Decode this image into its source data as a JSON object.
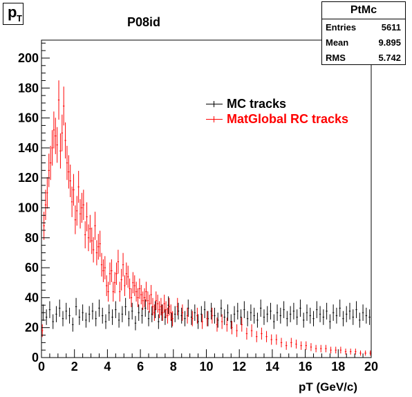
{
  "title_box": {
    "main": "p",
    "sub": "T"
  },
  "subtitle": "P08id",
  "stats": {
    "name": "PtMc",
    "rows": [
      {
        "label": "Entries",
        "value": "5611"
      },
      {
        "label": "Mean",
        "value": "9.895"
      },
      {
        "label": "RMS",
        "value": "5.742"
      }
    ]
  },
  "legend": [
    {
      "label": "MC tracks",
      "color": "#000000"
    },
    {
      "label": "MatGlobal RC tracks",
      "color": "#ff0000"
    }
  ],
  "chart_data": {
    "type": "scatter",
    "title": "P08id",
    "xlabel": "pT (GeV/c)",
    "ylabel": "",
    "xlim": [
      0,
      20
    ],
    "ylim": [
      0,
      212
    ],
    "x_ticks": [
      0,
      2,
      4,
      6,
      8,
      10,
      12,
      14,
      16,
      18,
      20
    ],
    "y_ticks": [
      0,
      20,
      40,
      60,
      80,
      100,
      120,
      140,
      160,
      180,
      200
    ],
    "bin_width": 0.1,
    "series": [
      {
        "name": "MC tracks",
        "color": "#000000",
        "x": [
          0.1,
          0.3,
          0.5,
          0.7,
          0.9,
          1.1,
          1.3,
          1.5,
          1.7,
          1.9,
          2.1,
          2.3,
          2.5,
          2.7,
          2.9,
          3.1,
          3.3,
          3.5,
          3.7,
          3.9,
          4.1,
          4.3,
          4.5,
          4.7,
          4.9,
          5.1,
          5.3,
          5.5,
          5.7,
          5.9,
          6.1,
          6.3,
          6.5,
          6.7,
          6.9,
          7.1,
          7.3,
          7.5,
          7.7,
          7.9,
          8.1,
          8.3,
          8.5,
          8.7,
          8.9,
          9.1,
          9.3,
          9.5,
          9.7,
          9.9,
          10.1,
          10.3,
          10.5,
          10.7,
          10.9,
          11.1,
          11.3,
          11.5,
          11.7,
          11.9,
          12.1,
          12.3,
          12.5,
          12.7,
          12.9,
          13.1,
          13.3,
          13.5,
          13.7,
          13.9,
          14.1,
          14.3,
          14.5,
          14.7,
          14.9,
          15.1,
          15.3,
          15.5,
          15.7,
          15.9,
          16.1,
          16.3,
          16.5,
          16.7,
          16.9,
          17.1,
          17.3,
          17.5,
          17.7,
          17.9,
          18.1,
          18.3,
          18.5,
          18.7,
          18.9,
          19.1,
          19.3,
          19.5,
          19.7,
          19.9
        ],
        "values": [
          30,
          27,
          32,
          24,
          29,
          33,
          26,
          31,
          28,
          22,
          34,
          27,
          30,
          25,
          29,
          31,
          26,
          33,
          28,
          24,
          30,
          27,
          32,
          25,
          29,
          34,
          26,
          31,
          23,
          30,
          28,
          33,
          26,
          29,
          32,
          24,
          30,
          27,
          35,
          25,
          29,
          31,
          28,
          26,
          33,
          27,
          30,
          24,
          29,
          32,
          26,
          31,
          28,
          25,
          33,
          27,
          30,
          24,
          29,
          31,
          27,
          32,
          26,
          30,
          28,
          25,
          33,
          27,
          29,
          31,
          24,
          30,
          28,
          32,
          26,
          29,
          31,
          27,
          33,
          25,
          30,
          28,
          26,
          32,
          29,
          27,
          31,
          24,
          30,
          28,
          33,
          26,
          29,
          31,
          27,
          32,
          25,
          30,
          28,
          27
        ]
      },
      {
        "name": "MatGlobal RC tracks",
        "color": "#ff0000",
        "x": [
          0.05,
          0.15,
          0.25,
          0.35,
          0.45,
          0.55,
          0.65,
          0.75,
          0.85,
          0.95,
          1.05,
          1.15,
          1.25,
          1.35,
          1.45,
          1.55,
          1.65,
          1.75,
          1.85,
          1.95,
          2.05,
          2.15,
          2.25,
          2.35,
          2.45,
          2.55,
          2.65,
          2.75,
          2.85,
          2.95,
          3.05,
          3.15,
          3.25,
          3.35,
          3.45,
          3.55,
          3.65,
          3.75,
          3.85,
          3.95,
          4.05,
          4.15,
          4.25,
          4.35,
          4.45,
          4.55,
          4.65,
          4.75,
          4.85,
          4.95,
          5.05,
          5.15,
          5.25,
          5.35,
          5.45,
          5.55,
          5.65,
          5.75,
          5.85,
          5.95,
          6.05,
          6.15,
          6.25,
          6.35,
          6.45,
          6.55,
          6.65,
          6.75,
          6.85,
          6.95,
          7.05,
          7.15,
          7.25,
          7.35,
          7.45,
          7.55,
          7.65,
          7.75,
          7.85,
          7.95,
          8.25,
          8.55,
          8.85,
          9.15,
          9.45,
          9.75,
          10.05,
          10.35,
          10.65,
          10.95,
          11.25,
          11.55,
          11.85,
          12.15,
          12.45,
          12.75,
          13.05,
          13.35,
          13.65,
          13.95,
          14.25,
          14.55,
          14.85,
          15.15,
          15.45,
          15.75,
          16.05,
          16.35,
          16.65,
          16.95,
          17.25,
          17.55,
          17.85,
          18.15,
          18.45,
          18.75,
          19.05,
          19.35,
          19.65,
          19.95
        ],
        "values": [
          18,
          88,
          102,
          110,
          125,
          130,
          140,
          152,
          148,
          142,
          172,
          138,
          150,
          168,
          145,
          130,
          124,
          118,
          104,
          112,
          92,
          98,
          114,
          96,
          100,
          102,
          82,
          94,
          80,
          86,
          78,
          72,
          88,
          70,
          74,
          76,
          62,
          58,
          60,
          48,
          44,
          56,
          58,
          44,
          50,
          56,
          64,
          44,
          52,
          62,
          48,
          56,
          54,
          46,
          40,
          50,
          48,
          44,
          40,
          46,
          42,
          38,
          40,
          44,
          38,
          36,
          42,
          34,
          30,
          38,
          36,
          32,
          34,
          30,
          36,
          32,
          28,
          34,
          30,
          26,
          34,
          30,
          28,
          26,
          28,
          24,
          26,
          28,
          22,
          24,
          22,
          20,
          18,
          22,
          16,
          18,
          14,
          16,
          14,
          12,
          12,
          10,
          8,
          10,
          9,
          8,
          8,
          7,
          6,
          6,
          6,
          5,
          5,
          5,
          4,
          4,
          4,
          3,
          3,
          3
        ]
      }
    ],
    "grid": false,
    "legend_position": "top-right"
  }
}
